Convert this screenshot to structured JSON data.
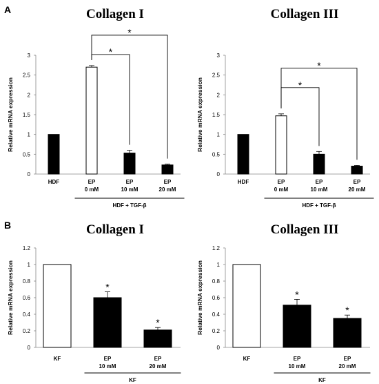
{
  "panels": [
    {
      "label": "A"
    },
    {
      "label": "B"
    }
  ],
  "chart_data": [
    {
      "type": "bar",
      "title": "Collagen I",
      "ylabel": "Relative mRNA expression",
      "ylim": [
        0,
        3
      ],
      "yticks": [
        "0",
        "0.5",
        "1",
        "1.5",
        "2",
        "2.5",
        "3"
      ],
      "ytick_values": [
        0,
        0.5,
        1,
        1.5,
        2,
        2.5,
        3
      ],
      "categories": [
        [
          "HDF"
        ],
        [
          "EP",
          "0 mM"
        ],
        [
          "EP",
          "10 mM"
        ],
        [
          "EP",
          "20 mM"
        ]
      ],
      "values": [
        1.0,
        2.7,
        0.53,
        0.23
      ],
      "errors": [
        0,
        0.04,
        0.07,
        0.02
      ],
      "fills": [
        "#000000",
        "#ffffff",
        "#000000",
        "#000000"
      ],
      "group_label": "HDF + TGF-β",
      "group_span": [
        1,
        3
      ],
      "brackets": [
        {
          "from": 1,
          "to": 2,
          "level": 1,
          "label": "*"
        },
        {
          "from": 1,
          "to": 3,
          "level": 2,
          "label": "*"
        }
      ],
      "stars": [],
      "grid": false
    },
    {
      "type": "bar",
      "title": "Collagen III",
      "ylabel": "Relative mRNA expression",
      "ylim": [
        0,
        3
      ],
      "yticks": [
        "0",
        "0.5",
        "1",
        "1.5",
        "2",
        "2.5",
        "3"
      ],
      "ytick_values": [
        0,
        0.5,
        1,
        1.5,
        2,
        2.5,
        3
      ],
      "categories": [
        [
          "HDF"
        ],
        [
          "EP",
          "0 mM"
        ],
        [
          "EP",
          "10 mM"
        ],
        [
          "EP",
          "20 mM"
        ]
      ],
      "values": [
        1.0,
        1.47,
        0.5,
        0.2
      ],
      "errors": [
        0,
        0.05,
        0.07,
        0.02
      ],
      "fills": [
        "#000000",
        "#ffffff",
        "#000000",
        "#000000"
      ],
      "group_label": "HDF + TGF-β",
      "group_span": [
        1,
        3
      ],
      "brackets": [
        {
          "from": 1,
          "to": 2,
          "level": 1,
          "label": "*"
        },
        {
          "from": 1,
          "to": 3,
          "level": 2,
          "label": "*"
        }
      ],
      "stars": [],
      "grid": false
    },
    {
      "type": "bar",
      "title": "Collagen I",
      "ylabel": "Relative mRNA expression",
      "ylim": [
        0,
        1.2
      ],
      "yticks": [
        "0",
        "0.2",
        "0.4",
        "0.6",
        "0.8",
        "1",
        "1.2"
      ],
      "ytick_values": [
        0,
        0.2,
        0.4,
        0.6,
        0.8,
        1,
        1.2
      ],
      "categories": [
        [
          "KF"
        ],
        [
          "EP",
          "10 mM"
        ],
        [
          "EP",
          "20 mM"
        ]
      ],
      "values": [
        1.0,
        0.6,
        0.21
      ],
      "errors": [
        0,
        0.07,
        0.03
      ],
      "fills": [
        "#ffffff",
        "#000000",
        "#000000"
      ],
      "group_label": "KF",
      "group_span": [
        1,
        2
      ],
      "brackets": [],
      "stars": [
        {
          "index": 1,
          "label": "*"
        },
        {
          "index": 2,
          "label": "*"
        }
      ],
      "grid": false
    },
    {
      "type": "bar",
      "title": "Collagen III",
      "ylabel": "Relative mRNA expression",
      "ylim": [
        0,
        1.2
      ],
      "yticks": [
        "0",
        "0.2",
        "0.4",
        "0.6",
        "0.8",
        "1",
        "1.2"
      ],
      "ytick_values": [
        0,
        0.2,
        0.4,
        0.6,
        0.8,
        1,
        1.2
      ],
      "categories": [
        [
          "KF"
        ],
        [
          "EP",
          "10 mM"
        ],
        [
          "EP",
          "20 mM"
        ]
      ],
      "values": [
        1.0,
        0.51,
        0.35
      ],
      "errors": [
        0,
        0.07,
        0.04
      ],
      "fills": [
        "#ffffff",
        "#000000",
        "#000000"
      ],
      "group_label": "KF",
      "group_span": [
        1,
        2
      ],
      "brackets": [],
      "stars": [
        {
          "index": 1,
          "label": "*"
        },
        {
          "index": 2,
          "label": "*"
        }
      ],
      "grid": false
    }
  ]
}
